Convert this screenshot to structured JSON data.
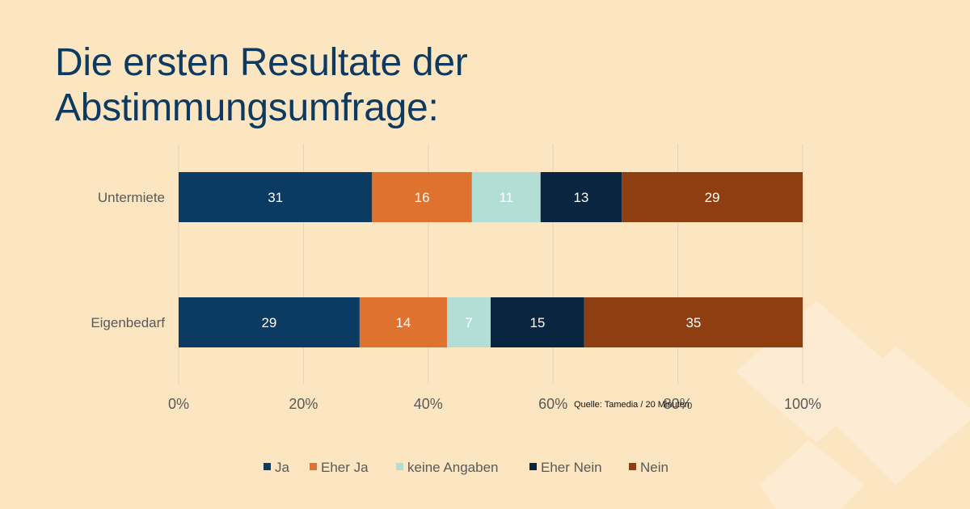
{
  "page": {
    "title_line1": "Die ersten Resultate der",
    "title_line2": "Abstimmungsumfrage:",
    "source": "Quelle: Tamedia / 20 Minuten"
  },
  "colors": {
    "background": "#fce6c2",
    "title": "#0f3a5f",
    "Ja": "#0b3a63",
    "Eher Ja": "#e07230",
    "keine Angaben": "#b3ded6",
    "Eher Nein": "#0a2540",
    "Nein": "#8f3e12"
  },
  "chart_data": {
    "type": "bar",
    "orientation": "horizontal",
    "stacked": "percent",
    "categories": [
      "Untermiete",
      "Eigenbedarf"
    ],
    "series": [
      {
        "name": "Ja",
        "values": [
          31,
          29
        ]
      },
      {
        "name": "Eher Ja",
        "values": [
          16,
          14
        ]
      },
      {
        "name": "keine Angaben",
        "values": [
          11,
          7
        ]
      },
      {
        "name": "Eher Nein",
        "values": [
          13,
          15
        ]
      },
      {
        "name": "Nein",
        "values": [
          29,
          35
        ]
      }
    ],
    "x_ticks": [
      "0%",
      "20%",
      "40%",
      "60%",
      "80%",
      "100%"
    ],
    "xlim": [
      0,
      100
    ],
    "grid": "vertical",
    "legend_position": "bottom"
  }
}
